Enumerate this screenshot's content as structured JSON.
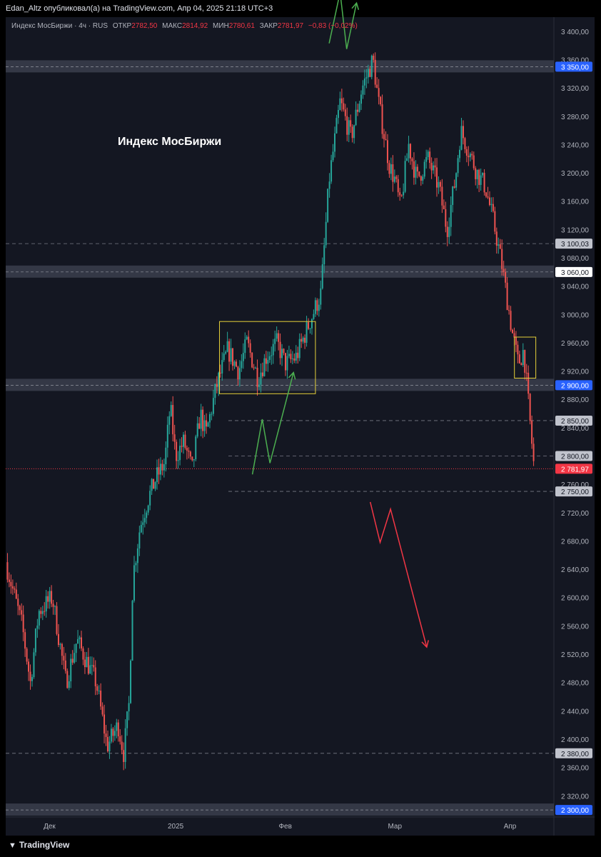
{
  "header": {
    "published": "Edan_Altz опубликовал(а) на TradingView.com, Апр 04, 2025 21:18 UTC+3"
  },
  "legend": {
    "symbol": "Индекс МосБиржи · 4ч · RUS",
    "open_label": "ОТКР",
    "open": "2782,50",
    "high_label": "МАКС",
    "high": "2814,92",
    "low_label": "МИН",
    "low": "2780,61",
    "close_label": "ЗАКР",
    "close": "2781,97",
    "change": "−0,83 (−0,02%)"
  },
  "footer": {
    "brand": "TradingView",
    "logo_icon": "tradingview-logo-icon"
  },
  "colors": {
    "background": "#141722",
    "up": "#26a69a",
    "down": "#ef5350",
    "zone": "#3a3e4c",
    "box": "#e6d13a",
    "arrow_up": "#4caf50",
    "arrow_down": "#f23645",
    "price_line": "#f23645",
    "axis_text": "#b2b5be",
    "blue_label": "#2962ff",
    "grey_label": "#c0c3cc"
  },
  "chart_data": {
    "type": "candlestick",
    "title": "Индекс МосБиржи",
    "timeframe": "4ч",
    "y_axis": {
      "range": [
        2290,
        3420
      ],
      "ticks": [
        "2 320,00",
        "2 360,00",
        "2 400,00",
        "2 440,00",
        "2 480,00",
        "2 520,00",
        "2 560,00",
        "2 600,00",
        "2 640,00",
        "2 680,00",
        "2 720,00",
        "2 760,00",
        "2 800,00",
        "2 840,00",
        "2 880,00",
        "2 920,00",
        "2 960,00",
        "3 000,00",
        "3 040,00",
        "3 080,00",
        "3 120,00",
        "3 160,00",
        "3 200,00",
        "3 240,00",
        "3 280,00",
        "3 320,00",
        "3 360,00",
        "3 400,00"
      ],
      "tick_values": [
        2320,
        2360,
        2400,
        2440,
        2480,
        2520,
        2560,
        2600,
        2640,
        2680,
        2720,
        2760,
        2800,
        2840,
        2880,
        2920,
        2960,
        3000,
        3040,
        3080,
        3120,
        3160,
        3200,
        3240,
        3280,
        3320,
        3360,
        3400
      ]
    },
    "x_axis": {
      "labels": [
        "Дек",
        "2025",
        "Фев",
        "Мар",
        "Апр"
      ],
      "label_positions": [
        0.08,
        0.31,
        0.51,
        0.71,
        0.92
      ]
    },
    "zones": [
      {
        "price": 3350,
        "label": "3 350,00",
        "style": "blue"
      },
      {
        "price": 3060,
        "label": "3 060,00",
        "style": "white"
      },
      {
        "price": 2900,
        "label": "2 900,00",
        "style": "blue"
      },
      {
        "price": 2300,
        "label": "2 300,00",
        "style": "blue"
      }
    ],
    "levels": [
      {
        "price": 3100.03,
        "label": "3 100,03"
      },
      {
        "price": 2850,
        "label": "2 850,00"
      },
      {
        "price": 2800,
        "label": "2 800,00"
      },
      {
        "price": 2750,
        "label": "2 750,00"
      },
      {
        "price": 2380,
        "label": "2 380,00"
      }
    ],
    "last_price": {
      "price": 2781.97,
      "label": "2 781,97"
    },
    "path": [
      [
        0.0,
        2650
      ],
      [
        0.03,
        2560
      ],
      [
        0.045,
        2480
      ],
      [
        0.06,
        2580
      ],
      [
        0.085,
        2600
      ],
      [
        0.11,
        2480
      ],
      [
        0.13,
        2540
      ],
      [
        0.165,
        2480
      ],
      [
        0.185,
        2390
      ],
      [
        0.205,
        2420
      ],
      [
        0.215,
        2380
      ],
      [
        0.225,
        2450
      ],
      [
        0.232,
        2630
      ],
      [
        0.245,
        2700
      ],
      [
        0.26,
        2740
      ],
      [
        0.275,
        2770
      ],
      [
        0.29,
        2790
      ],
      [
        0.3,
        2870
      ],
      [
        0.31,
        2800
      ],
      [
        0.325,
        2820
      ],
      [
        0.34,
        2780
      ],
      [
        0.355,
        2860
      ],
      [
        0.365,
        2830
      ],
      [
        0.385,
        2900
      ],
      [
        0.405,
        2950
      ],
      [
        0.425,
        2920
      ],
      [
        0.44,
        2960
      ],
      [
        0.46,
        2910
      ],
      [
        0.475,
        2940
      ],
      [
        0.495,
        2960
      ],
      [
        0.51,
        2930
      ],
      [
        0.53,
        2940
      ],
      [
        0.55,
        2980
      ],
      [
        0.575,
        3030
      ],
      [
        0.59,
        3190
      ],
      [
        0.61,
        3300
      ],
      [
        0.63,
        3250
      ],
      [
        0.65,
        3320
      ],
      [
        0.67,
        3360
      ],
      [
        0.68,
        3300
      ],
      [
        0.7,
        3210
      ],
      [
        0.71,
        3190
      ],
      [
        0.72,
        3150
      ],
      [
        0.735,
        3240
      ],
      [
        0.75,
        3190
      ],
      [
        0.77,
        3220
      ],
      [
        0.79,
        3180
      ],
      [
        0.805,
        3120
      ],
      [
        0.82,
        3190
      ],
      [
        0.83,
        3260
      ],
      [
        0.845,
        3230
      ],
      [
        0.86,
        3200
      ],
      [
        0.875,
        3180
      ],
      [
        0.89,
        3130
      ],
      [
        0.905,
        3070
      ],
      [
        0.915,
        3020
      ],
      [
        0.925,
        2970
      ],
      [
        0.935,
        2930
      ],
      [
        0.945,
        2950
      ],
      [
        0.955,
        2860
      ],
      [
        0.963,
        2790
      ]
    ],
    "annotations": {
      "title_text": "Индекс МосБиржи",
      "boxes": [
        {
          "x0": 0.39,
          "x1": 0.565,
          "y0": 2888,
          "y1": 2990
        },
        {
          "x0": 0.928,
          "x1": 0.967,
          "y0": 2910,
          "y1": 2968
        }
      ],
      "arrows": [
        {
          "color": "up",
          "points": [
            [
              0.45,
              2774
            ],
            [
              0.468,
              2852
            ],
            [
              0.482,
              2790
            ],
            [
              0.525,
              2918
            ]
          ]
        },
        {
          "color": "up",
          "points": [
            [
              0.59,
              3383
            ],
            [
              0.61,
              3455
            ],
            [
              0.622,
              3375
            ],
            [
              0.64,
              3440
            ]
          ]
        },
        {
          "color": "down",
          "points": [
            [
              0.665,
              2735
            ],
            [
              0.683,
              2678
            ],
            [
              0.702,
              2725
            ],
            [
              0.768,
              2530
            ]
          ]
        }
      ]
    }
  }
}
